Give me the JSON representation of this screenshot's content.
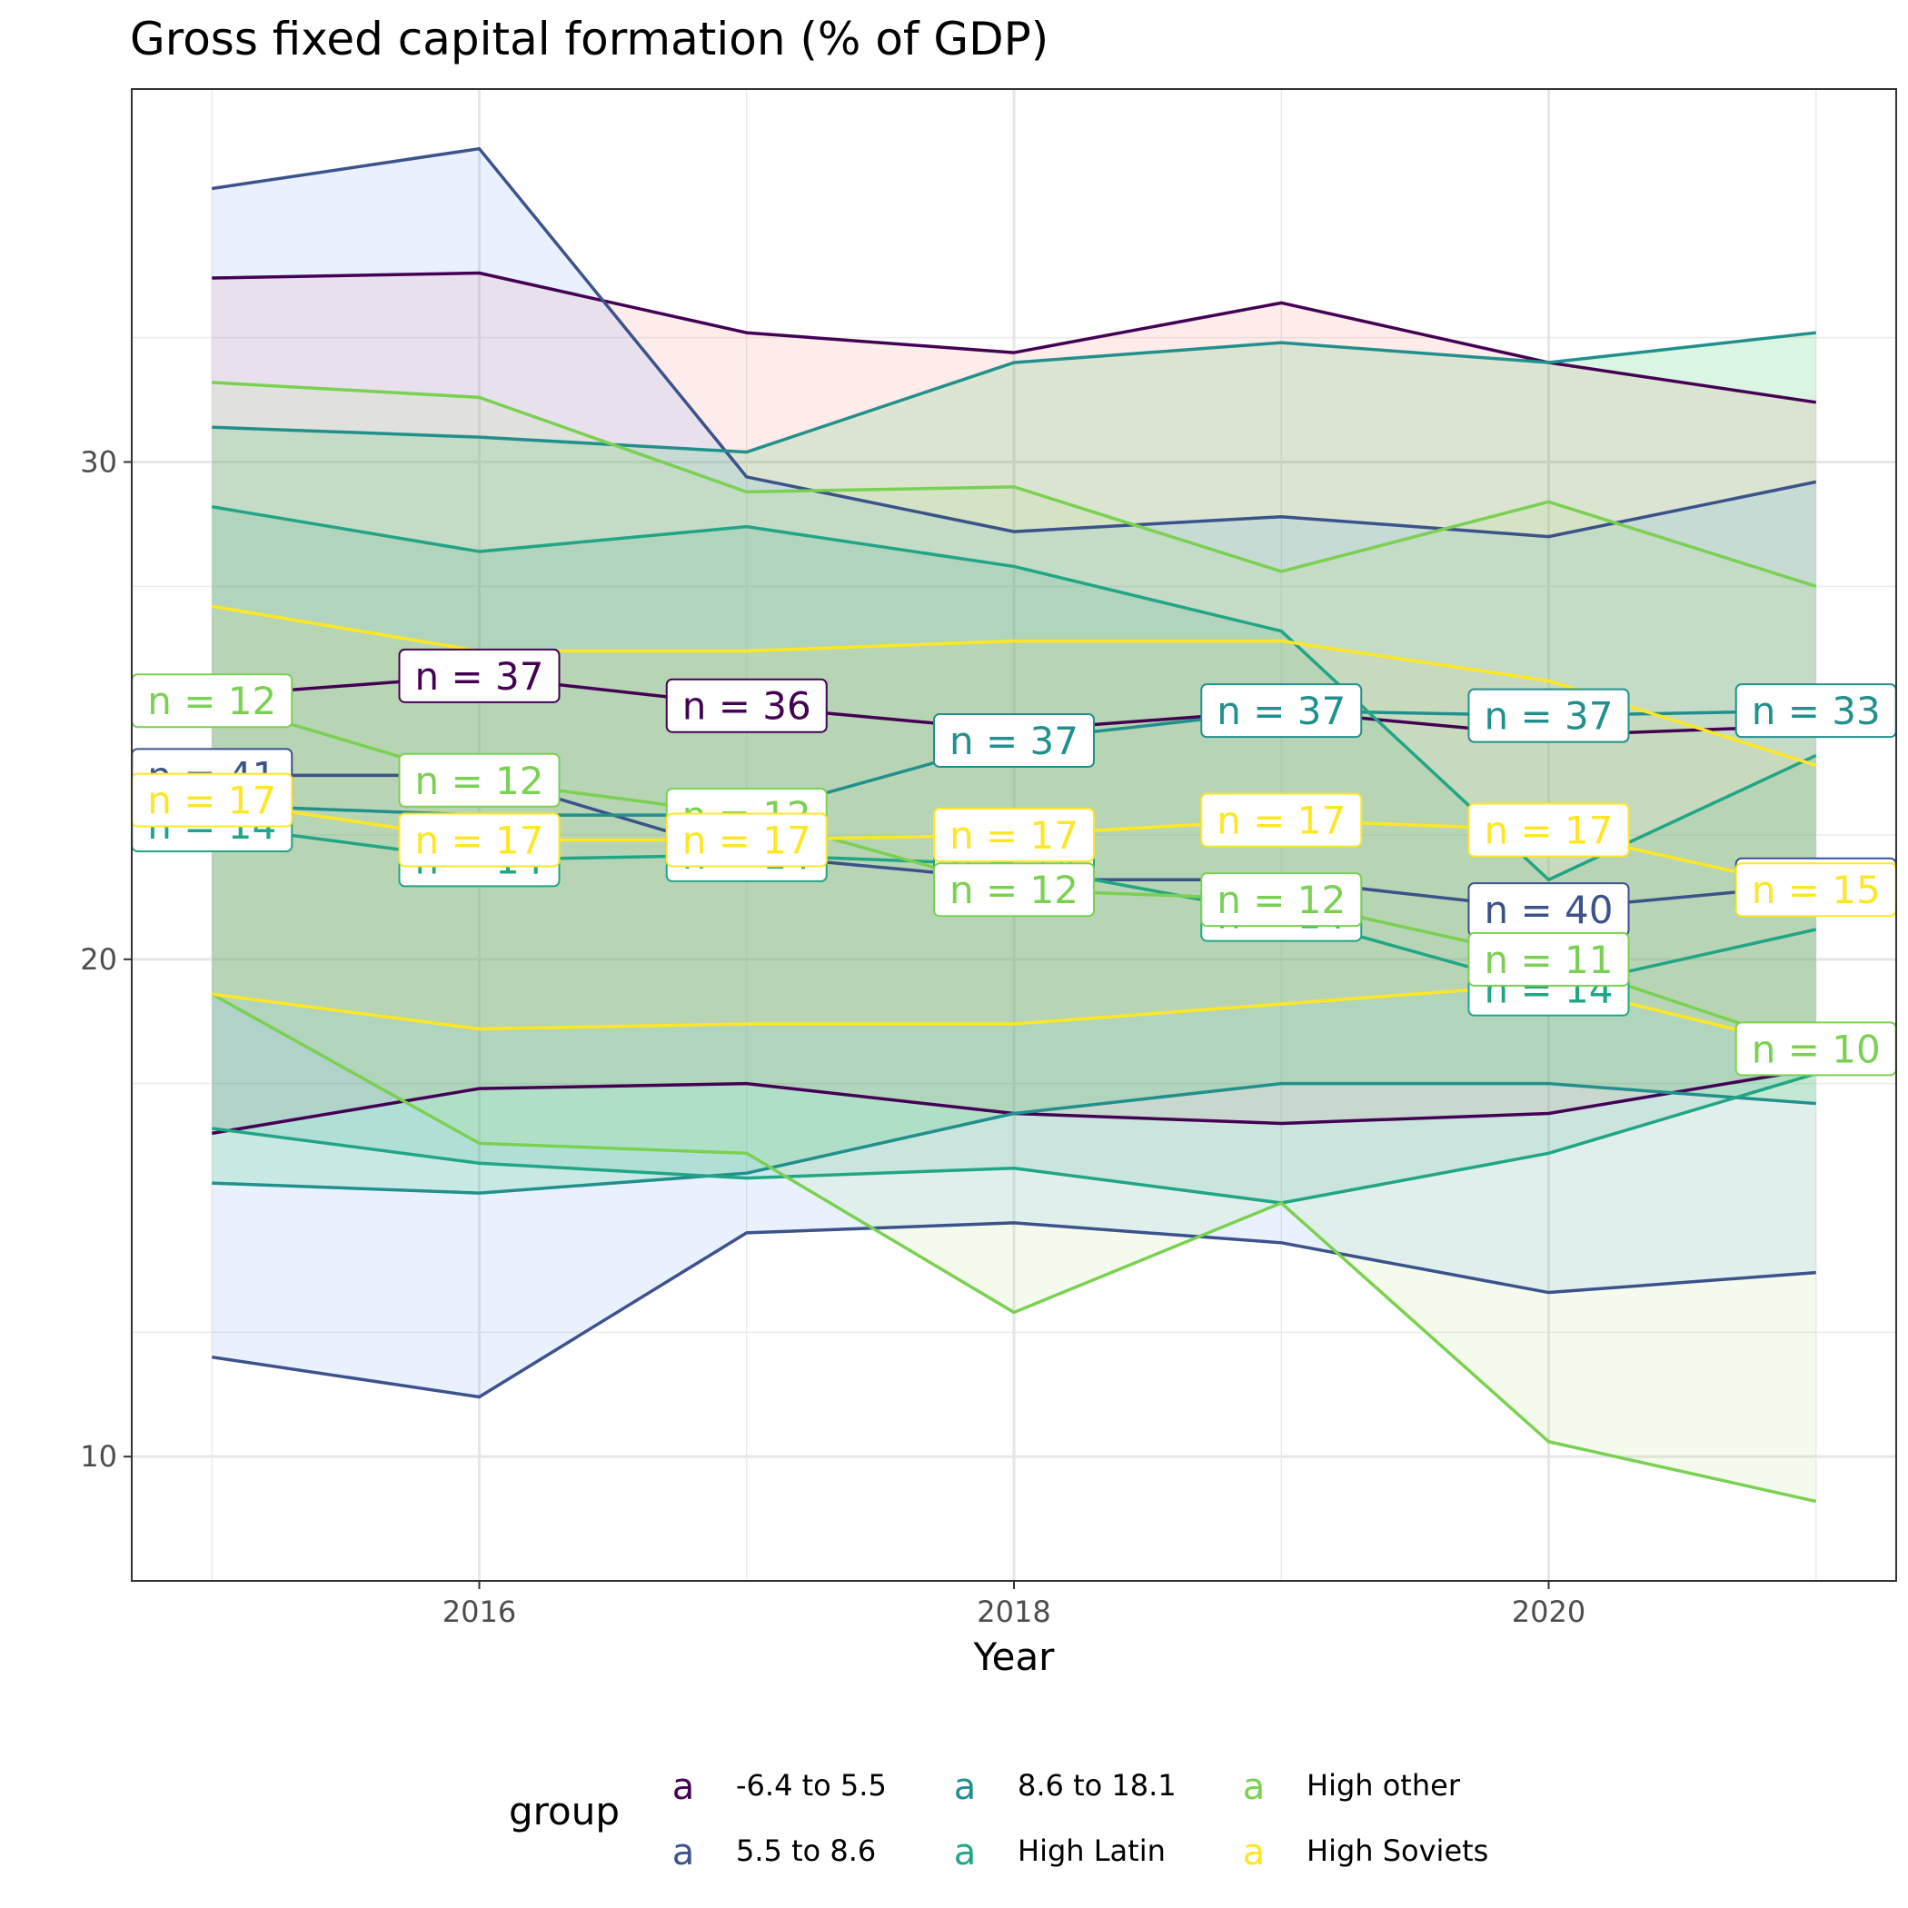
{
  "title": "Gross fixed capital formation (% of GDP)",
  "chart_data": {
    "type": "line",
    "title": "Gross fixed capital formation (% of GDP)",
    "xlabel": "Year",
    "ylabel": "",
    "x": [
      2015,
      2016,
      2017,
      2018,
      2019,
      2020,
      2021
    ],
    "xlim": [
      2014.7,
      2021.3
    ],
    "ylim": [
      7.5,
      37.5
    ],
    "x_ticks": [
      2016,
      2018,
      2020
    ],
    "y_ticks": [
      10,
      20,
      30
    ],
    "grid": true,
    "legend": {
      "title": "group",
      "position": "bottom",
      "key_glyph": "a"
    },
    "series": [
      {
        "name": "-6.4 to 5.5",
        "color": "#440154",
        "median": [
          25.3,
          25.7,
          25.1,
          24.6,
          25.0,
          24.5,
          24.7
        ],
        "upper": [
          33.7,
          33.8,
          32.6,
          32.2,
          33.2,
          32.0,
          31.2
        ],
        "lower": [
          16.5,
          17.4,
          17.5,
          16.9,
          16.7,
          16.9,
          17.8
        ],
        "n": [
          null,
          37,
          36,
          null,
          null,
          null,
          null
        ],
        "fill": "#f8766d"
      },
      {
        "name": "5.5 to 8.6",
        "color": "#3b528b",
        "median": [
          23.7,
          23.7,
          22.1,
          21.6,
          21.6,
          21.0,
          21.5
        ],
        "upper": [
          35.5,
          36.3,
          29.7,
          28.6,
          28.9,
          28.5,
          29.6
        ],
        "lower": [
          12.0,
          11.2,
          14.5,
          14.7,
          14.3,
          13.3,
          13.7
        ],
        "n": [
          41,
          null,
          null,
          null,
          null,
          40,
          30
        ],
        "fill": "#619cff"
      },
      {
        "name": "8.6 to 18.1",
        "color": "#21908d",
        "median": [
          23.1,
          22.9,
          22.9,
          24.4,
          25.0,
          24.9,
          25.0
        ],
        "upper": [
          30.7,
          30.5,
          30.2,
          32.0,
          32.4,
          32.0,
          32.6
        ],
        "lower": [
          15.5,
          15.3,
          15.7,
          16.9,
          17.5,
          17.5,
          17.1
        ],
        "n": [
          null,
          null,
          null,
          37,
          37,
          37,
          33
        ],
        "fill": "#00ba38"
      },
      {
        "name": "High Latin",
        "color": "#21a685",
        "median": [
          22.7,
          22.0,
          22.1,
          21.9,
          20.9,
          19.4,
          20.6
        ],
        "upper": [
          29.1,
          28.2,
          28.7,
          27.9,
          26.6,
          21.6,
          24.1
        ],
        "lower": [
          16.6,
          15.9,
          15.6,
          15.8,
          15.1,
          16.1,
          17.7
        ],
        "n": [
          14,
          14,
          14,
          14,
          14,
          14,
          null
        ],
        "fill": "#21a685"
      },
      {
        "name": "High other",
        "color": "#7ad151",
        "median": [
          25.2,
          23.6,
          22.9,
          21.4,
          21.2,
          20.0,
          18.2
        ],
        "upper": [
          31.6,
          31.3,
          29.4,
          29.5,
          27.8,
          29.2,
          27.5
        ],
        "lower": [
          19.3,
          16.3,
          16.1,
          12.9,
          15.1,
          10.3,
          9.1
        ],
        "n": [
          12,
          12,
          12,
          12,
          12,
          11,
          10
        ],
        "fill": "#b4e07a"
      },
      {
        "name": "High Soviets",
        "color": "#fde725",
        "median": [
          23.2,
          22.4,
          22.4,
          22.5,
          22.8,
          22.6,
          21.4
        ],
        "upper": [
          27.1,
          26.2,
          26.2,
          26.4,
          26.4,
          25.6,
          23.9
        ],
        "lower": [
          19.3,
          18.6,
          18.7,
          18.7,
          19.1,
          19.5,
          18.2
        ],
        "n": [
          17,
          17,
          17,
          17,
          17,
          17,
          15
        ],
        "fill": "#e6d28a"
      }
    ]
  }
}
